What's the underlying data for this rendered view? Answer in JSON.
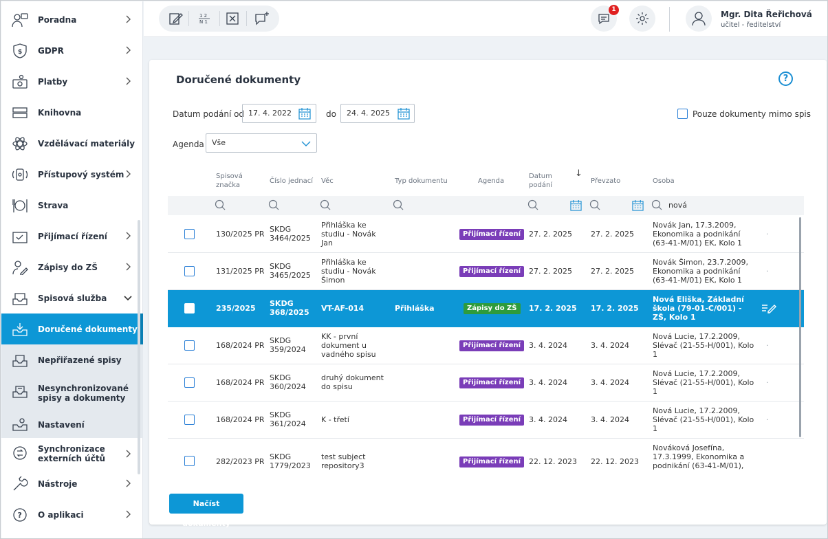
{
  "sidebar": {
    "items": [
      {
        "label": "Poradna",
        "icon": "counseling-icon"
      },
      {
        "label": "GDPR",
        "icon": "gdpr-shield-icon"
      },
      {
        "label": "Platby",
        "icon": "payments-icon"
      },
      {
        "label": "Knihovna",
        "icon": "library-icon"
      },
      {
        "label": "Vzdělávací materiály",
        "icon": "atom-icon"
      },
      {
        "label": "Přístupový systém",
        "icon": "access-system-icon"
      },
      {
        "label": "Strava",
        "icon": "food-icon"
      },
      {
        "label": "Přijímací řízení",
        "icon": "admission-icon"
      },
      {
        "label": "Zápisy do ZŠ",
        "icon": "enrollment-icon"
      },
      {
        "label": "Spisová služba",
        "icon": "inbox-tray-icon"
      },
      {
        "label": "Doručené dokumenty",
        "icon": "inbox-download-icon"
      },
      {
        "label": "Nepřiřazené spisy",
        "icon": "unassigned-tray-icon"
      },
      {
        "label": "Nesynchronizované spisy a dokumenty",
        "icon": "unsynced-tray-icon"
      },
      {
        "label": "Nastavení",
        "icon": "settings-tray-icon"
      },
      {
        "label": "Synchronizace externích účtů",
        "icon": "sync-icon"
      },
      {
        "label": "Nástroje",
        "icon": "wrench-icon"
      },
      {
        "label": "O aplikaci",
        "icon": "question-icon"
      }
    ]
  },
  "topbar": {
    "tools": [
      "edit-icon",
      "numbering-icon",
      "close-box-icon",
      "add-comment-icon"
    ],
    "notifications_count": "1",
    "user": {
      "name": "Mgr. Dita Řeřichová",
      "role": "učitel - ředitelství"
    }
  },
  "page": {
    "title": "Doručené dokumenty",
    "help": "?",
    "filters": {
      "date_label": "Datum podání od",
      "date_from": "17. 4. 2022",
      "to_label": "do",
      "date_to": "24. 4. 2025",
      "outside_label": "Pouze dokumenty mimo spis",
      "agenda_label": "Agenda",
      "agenda_value": "Vše"
    },
    "load_button": "Načíst dokumenty"
  },
  "table": {
    "columns": {
      "spisova": "Spisová značka",
      "cislo": "Číslo jednací",
      "vec": "Věc",
      "typ": "Typ dokumentu",
      "agenda": "Agenda",
      "datum": "Datum podání",
      "sort": "↓",
      "prevzato": "Převzato",
      "osoba": "Osoba"
    },
    "person_filter": "nová",
    "rows": [
      {
        "spisova": "130/2025 PR",
        "cislo": "SKDG 3464/2025",
        "vec": "Přihláška ke studiu - Novák Jan",
        "typ": "",
        "agenda": "Přijímací řízení",
        "datum": "27. 2. 2025",
        "prevzato": "27. 2. 2025",
        "osoba": "Novák Jan, 17.3.2009, Ekonomika a podnikání (63-41-M/01) EK, Kolo 1",
        "extra": "·"
      },
      {
        "spisova": "131/2025 PR",
        "cislo": "SKDG 3465/2025",
        "vec": "Přihláška ke studiu - Novák Šimon",
        "typ": "",
        "agenda": "Přijímací řízení",
        "datum": "27. 2. 2025",
        "prevzato": "27. 2. 2025",
        "osoba": "Novák Šimon, 23.7.2009, Ekonomika a podnikání (63-41-M/01) EK, Kolo 1",
        "extra": "·"
      },
      {
        "spisova": "235/2025",
        "cislo": "SKDG 368/2025",
        "vec": "VT-AF-014",
        "typ": "Přihláška",
        "agenda": "Zápisy do ZŠ",
        "datum": "17. 2. 2025",
        "prevzato": "17. 2. 2025",
        "osoba": "Nová Eliška, Základní škola (79-01-C/001) - ZŠ, Kolo 1",
        "extra": ""
      },
      {
        "spisova": "168/2024 PR",
        "cislo": "SKDG 359/2024",
        "vec": "KK - první dokument u vadného spisu",
        "typ": "",
        "agenda": "Přijímací řízení",
        "datum": "3. 4. 2024",
        "prevzato": "3. 4. 2024",
        "osoba": "Nová Lucie, 17.2.2009, Slévač (21-55-H/001), Kolo 1",
        "extra": "·"
      },
      {
        "spisova": "168/2024 PR",
        "cislo": "SKDG 360/2024",
        "vec": "druhý dokument do spisu",
        "typ": "",
        "agenda": "Přijímací řízení",
        "datum": "3. 4. 2024",
        "prevzato": "3. 4. 2024",
        "osoba": "Nová Lucie, 17.2.2009, Slévač (21-55-H/001), Kolo 1",
        "extra": "·"
      },
      {
        "spisova": "168/2024 PR",
        "cislo": "SKDG 361/2024",
        "vec": "K - třetí",
        "typ": "",
        "agenda": "Přijímací řízení",
        "datum": "3. 4. 2024",
        "prevzato": "3. 4. 2024",
        "osoba": "Nová Lucie, 17.2.2009, Slévač (21-55-H/001), Kolo 1",
        "extra": "·"
      },
      {
        "spisova": "282/2023 PR",
        "cislo": "SKDG 1779/2023",
        "vec": "test subject repository3",
        "typ": "",
        "agenda": "Přijímací řízení",
        "datum": "22. 12. 2023",
        "prevzato": "22. 12. 2023",
        "osoba": "Nováková Josefína, 17.3.1999, Ekonomika a podnikání (63-41-M/01),",
        "extra": ""
      }
    ]
  },
  "colors": {
    "accent": "#0d97d6",
    "prijimaci": "#7a3db8",
    "zapisy": "#2e9b3c",
    "badge_red": "#e02020"
  }
}
